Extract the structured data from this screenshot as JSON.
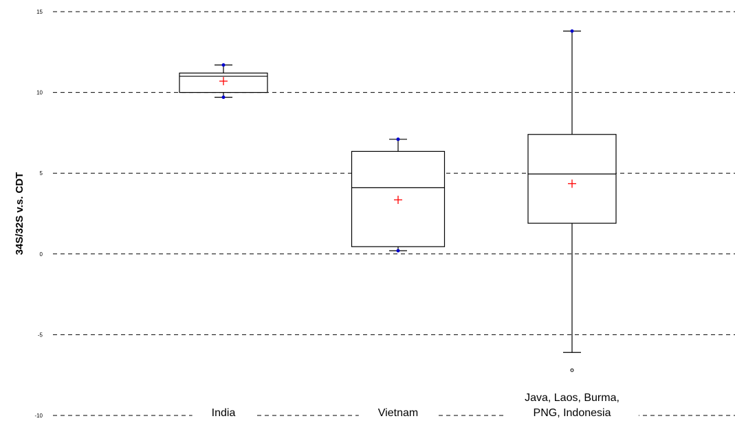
{
  "chart_data": {
    "type": "box",
    "ylabel": "34S/32S v.s. CDT",
    "xlabel": "",
    "ylim": [
      -10,
      15
    ],
    "yticks": [
      15,
      10,
      5,
      0,
      -5,
      -10
    ],
    "ytick_labels": [
      "15",
      "10",
      "5",
      "0",
      "-5",
      "-10"
    ],
    "grid": "horizontal dashed",
    "categories": [
      {
        "lines": [
          "India"
        ]
      },
      {
        "lines": [
          "Vietnam"
        ]
      },
      {
        "lines": [
          "Java, Laos, Burma,",
          "PNG, Indonesia"
        ]
      }
    ],
    "boxes": [
      {
        "min": 9.7,
        "q1": 10.0,
        "median": 11.0,
        "q3": 11.2,
        "max": 11.7,
        "mean": 10.7,
        "outliers": [],
        "extreme_points": [
          11.7,
          9.7
        ]
      },
      {
        "min": 0.2,
        "q1": 0.45,
        "median": 4.1,
        "q3": 6.35,
        "max": 7.1,
        "mean": 3.35,
        "outliers": [],
        "extreme_points": [
          7.1,
          0.2
        ]
      },
      {
        "min": -6.1,
        "q1": 1.9,
        "median": 4.95,
        "q3": 7.4,
        "max": 13.8,
        "mean": 4.35,
        "outliers": [
          -7.2
        ],
        "extreme_points": [
          13.8
        ]
      }
    ],
    "colors": {
      "mean_marker": "#ff0000",
      "extreme_marker": "#0000cc",
      "box": "#000000",
      "grid": "#000000"
    }
  }
}
